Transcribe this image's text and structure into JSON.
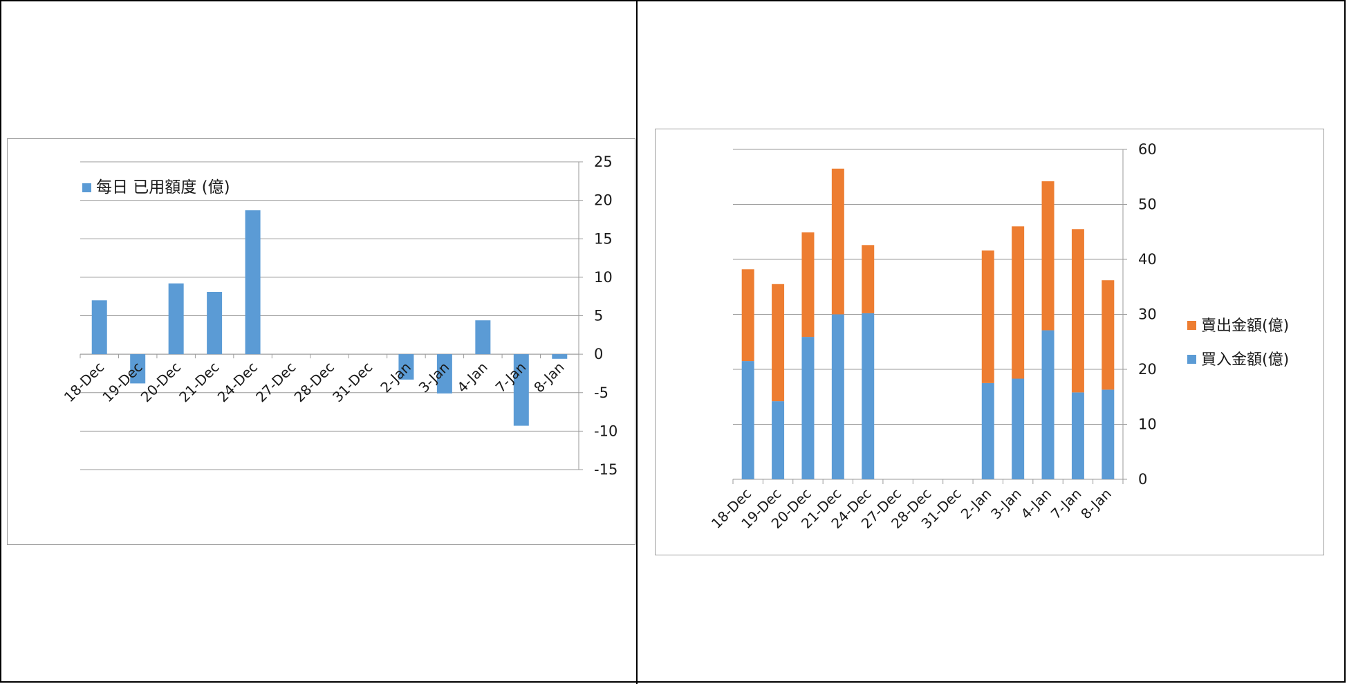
{
  "colors": {
    "buy": "#5b9bd5",
    "sell": "#ed7d31",
    "grid": "#9a9a9a",
    "axis": "#9a9a9a"
  },
  "chart_data": [
    {
      "type": "bar",
      "categories": [
        "18-Dec",
        "19-Dec",
        "20-Dec",
        "21-Dec",
        "24-Dec",
        "27-Dec",
        "28-Dec",
        "31-Dec",
        "2-Jan",
        "3-Jan",
        "4-Jan",
        "7-Jan",
        "8-Jan"
      ],
      "series": [
        {
          "name": "每日 已用額度 (億)",
          "values": [
            7,
            -3.8,
            9.2,
            8.1,
            18.7,
            0,
            0,
            0,
            -3.3,
            -5.1,
            4.4,
            -9.3,
            -0.6
          ]
        }
      ],
      "yticks": [
        25,
        20,
        15,
        10,
        5,
        0,
        -5,
        -10,
        -15
      ],
      "ylim": [
        -15,
        25
      ],
      "grid": true,
      "legend": "top-left",
      "y_axis_position": "right"
    },
    {
      "type": "bar",
      "stacked": true,
      "categories": [
        "18-Dec",
        "19-Dec",
        "20-Dec",
        "21-Dec",
        "24-Dec",
        "27-Dec",
        "28-Dec",
        "31-Dec",
        "2-Jan",
        "3-Jan",
        "4-Jan",
        "7-Jan",
        "8-Jan"
      ],
      "series": [
        {
          "name": "買入金額(億)",
          "values": [
            21.5,
            14.2,
            25.9,
            30,
            30.2,
            0,
            0,
            0,
            17.5,
            18.3,
            27.1,
            15.8,
            16.3
          ]
        },
        {
          "name": "賣出金額(億)",
          "values": [
            16.7,
            21.3,
            19,
            26.5,
            12.4,
            0,
            0,
            0,
            24.1,
            27.7,
            27.1,
            29.7,
            19.9
          ]
        }
      ],
      "yticks": [
        60,
        50,
        40,
        30,
        20,
        10,
        0
      ],
      "ylim": [
        0,
        60
      ],
      "grid": true,
      "legend": "right",
      "y_axis_position": "right"
    }
  ]
}
